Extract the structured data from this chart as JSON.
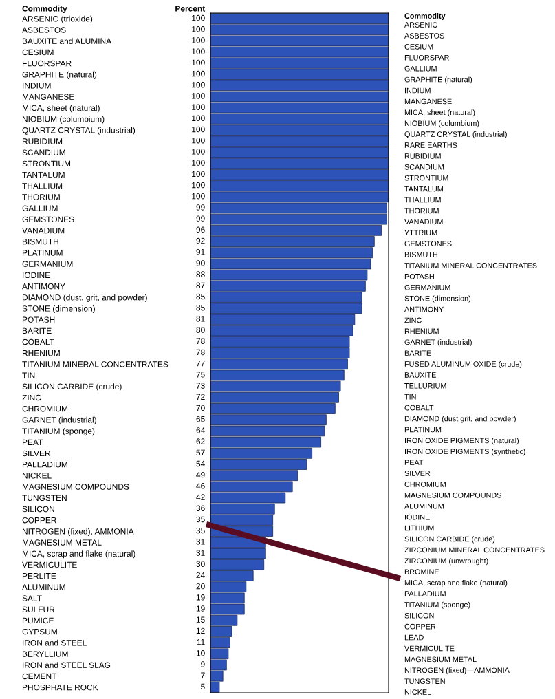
{
  "chart_data": {
    "type": "bar",
    "orientation": "horizontal",
    "ylabel": "Commodity",
    "categories": [
      "ARSENIC (trioxide)",
      "ASBESTOS",
      "BAUXITE and ALUMINA",
      "CESIUM",
      "FLUORSPAR",
      "GRAPHITE (natural)",
      "INDIUM",
      "MANGANESE",
      "MICA, sheet (natural)",
      "NIOBIUM (columbium)",
      "QUARTZ CRYSTAL (industrial)",
      "RUBIDIUM",
      "SCANDIUM",
      "STRONTIUM",
      "TANTALUM",
      "THALLIUM",
      "THORIUM",
      "GALLIUM",
      "GEMSTONES",
      "VANADIUM",
      "BISMUTH",
      "PLATINUM",
      "GERMANIUM",
      "IODINE",
      "ANTIMONY",
      "DIAMOND (dust, grit, and powder)",
      "STONE (dimension)",
      "POTASH",
      "BARITE",
      "COBALT",
      "RHENIUM",
      "TITANIUM MINERAL CONCENTRATES",
      "TIN",
      "SILICON CARBIDE (crude)",
      "ZINC",
      "CHROMIUM",
      "GARNET (industrial)",
      "TITANIUM (sponge)",
      "PEAT",
      "SILVER",
      "PALLADIUM",
      "NICKEL",
      "MAGNESIUM COMPOUNDS",
      "TUNGSTEN",
      "SILICON",
      "COPPER",
      "NITROGEN (fixed), AMMONIA",
      "MAGNESIUM METAL",
      "MICA, scrap and flake (natural)",
      "VERMICULITE",
      "PERLITE",
      "ALUMINUM",
      "SALT",
      "SULFUR",
      "PUMICE",
      "GYPSUM",
      "IRON and STEEL",
      "BERYLLIUM",
      "IRON and STEEL SLAG",
      "CEMENT",
      "PHOSPHATE ROCK"
    ],
    "values": [
      100,
      100,
      100,
      100,
      100,
      100,
      100,
      100,
      100,
      100,
      100,
      100,
      100,
      100,
      100,
      100,
      100,
      99,
      99,
      96,
      92,
      91,
      90,
      88,
      87,
      85,
      85,
      81,
      80,
      78,
      78,
      77,
      75,
      73,
      72,
      70,
      65,
      64,
      62,
      57,
      54,
      49,
      46,
      42,
      36,
      35,
      35,
      31,
      31,
      30,
      24,
      20,
      19,
      19,
      15,
      12,
      11,
      10,
      9,
      7,
      5
    ],
    "color": "#2d52b8",
    "xlim": [
      0,
      100
    ],
    "tick_labels": "y",
    "data_labels": true,
    "grid": false,
    "legend": false,
    "annotations": [
      "Percent",
      "Commodity",
      "ARSENIC",
      "ASBESTOS",
      "CESIUM",
      "FLUORSPAR",
      "GALLIUM",
      "GRAPHITE (natural)",
      "INDIUM",
      "MANGANESE",
      "MICA, sheet (natural)",
      "NIOBIUM (columbium)",
      "QUARTZ CRYSTAL (industrial)",
      "RARE EARTHS",
      "RUBIDIUM",
      "SCANDIUM",
      "STRONTIUM",
      "TANTALUM",
      "THALLIUM",
      "THORIUM",
      "VANADIUM",
      "YTTRIUM",
      "GEMSTONES",
      "BISMUTH",
      "TITANIUM MINERAL CONCENTRATES",
      "POTASH",
      "GERMANIUM",
      "STONE (dimension)",
      "ANTIMONY",
      "ZINC",
      "RHENIUM",
      "GARNET (industrial)",
      "BARITE",
      "FUSED ALUMINUM OXIDE (crude)",
      "BAUXITE",
      "TELLURIUM",
      "TIN",
      "COBALT",
      "DIAMOND (dust grit, and powder)",
      "PLATINUM",
      "IRON OXIDE PIGMENTS (natural)",
      "IRON OXIDE PIGMENTS (synthetic)",
      "PEAT",
      "SILVER",
      "CHROMIUM",
      "MAGNESIUM COMPOUNDS",
      "ALUMINUM",
      "IODINE",
      "LITHIUM",
      "SILICON CARBIDE (crude)",
      "ZIRCONIUM MINERAL CONCENTRATES",
      "ZIRCONIUM (unwrought)",
      "BROMINE",
      "MICA, scrap and flake (natural)",
      "PALLADIUM",
      "TITANIUM (sponge)",
      "SILICON",
      "COPPER",
      "LEAD",
      "VERMICULITE",
      "MAGNESIUM METAL",
      "NITROGEN (fixed)—AMMONIA",
      "TUNGSTEN",
      "NICKEL"
    ]
  }
}
